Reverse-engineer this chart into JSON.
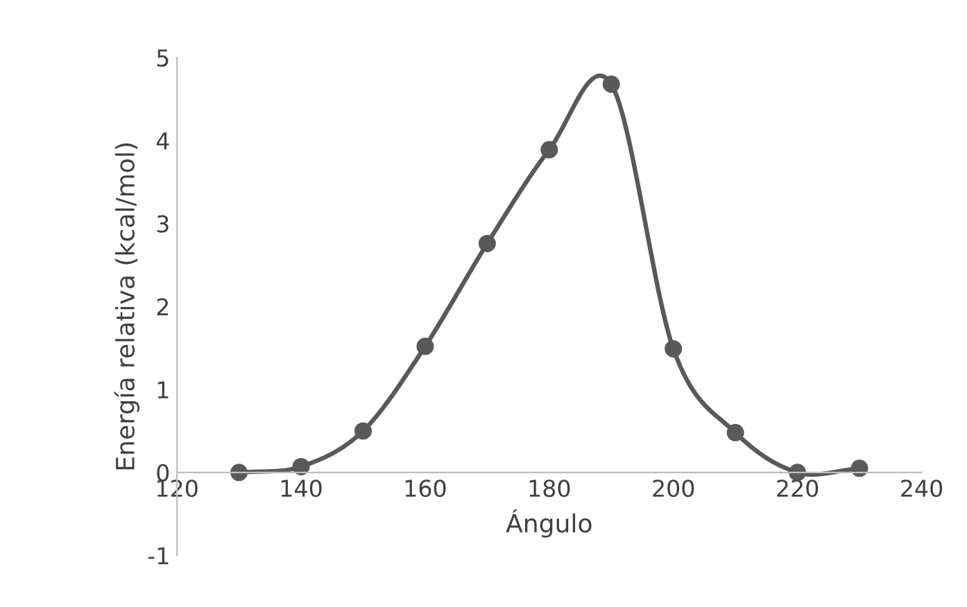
{
  "chart_data": {
    "type": "line",
    "xlabel": "Ángulo",
    "ylabel": "Energía relativa (kcal/mol)",
    "x": [
      130,
      140,
      150,
      160,
      170,
      180,
      190,
      200,
      210,
      220,
      230
    ],
    "series": [
      {
        "color": "#595959",
        "values": [
          0.0,
          0.07,
          0.5,
          1.52,
          2.76,
          3.89,
          4.68,
          1.49,
          0.48,
          0.0,
          0.05
        ]
      }
    ],
    "xlim": [
      120,
      240
    ],
    "xticks": [
      120,
      140,
      160,
      180,
      200,
      220,
      240
    ],
    "ylim": [
      -1,
      5
    ],
    "yticks": [
      -1,
      0,
      1,
      2,
      3,
      4,
      5
    ],
    "grid": false,
    "legend": false,
    "marker": "circle",
    "line_style": "solid"
  }
}
